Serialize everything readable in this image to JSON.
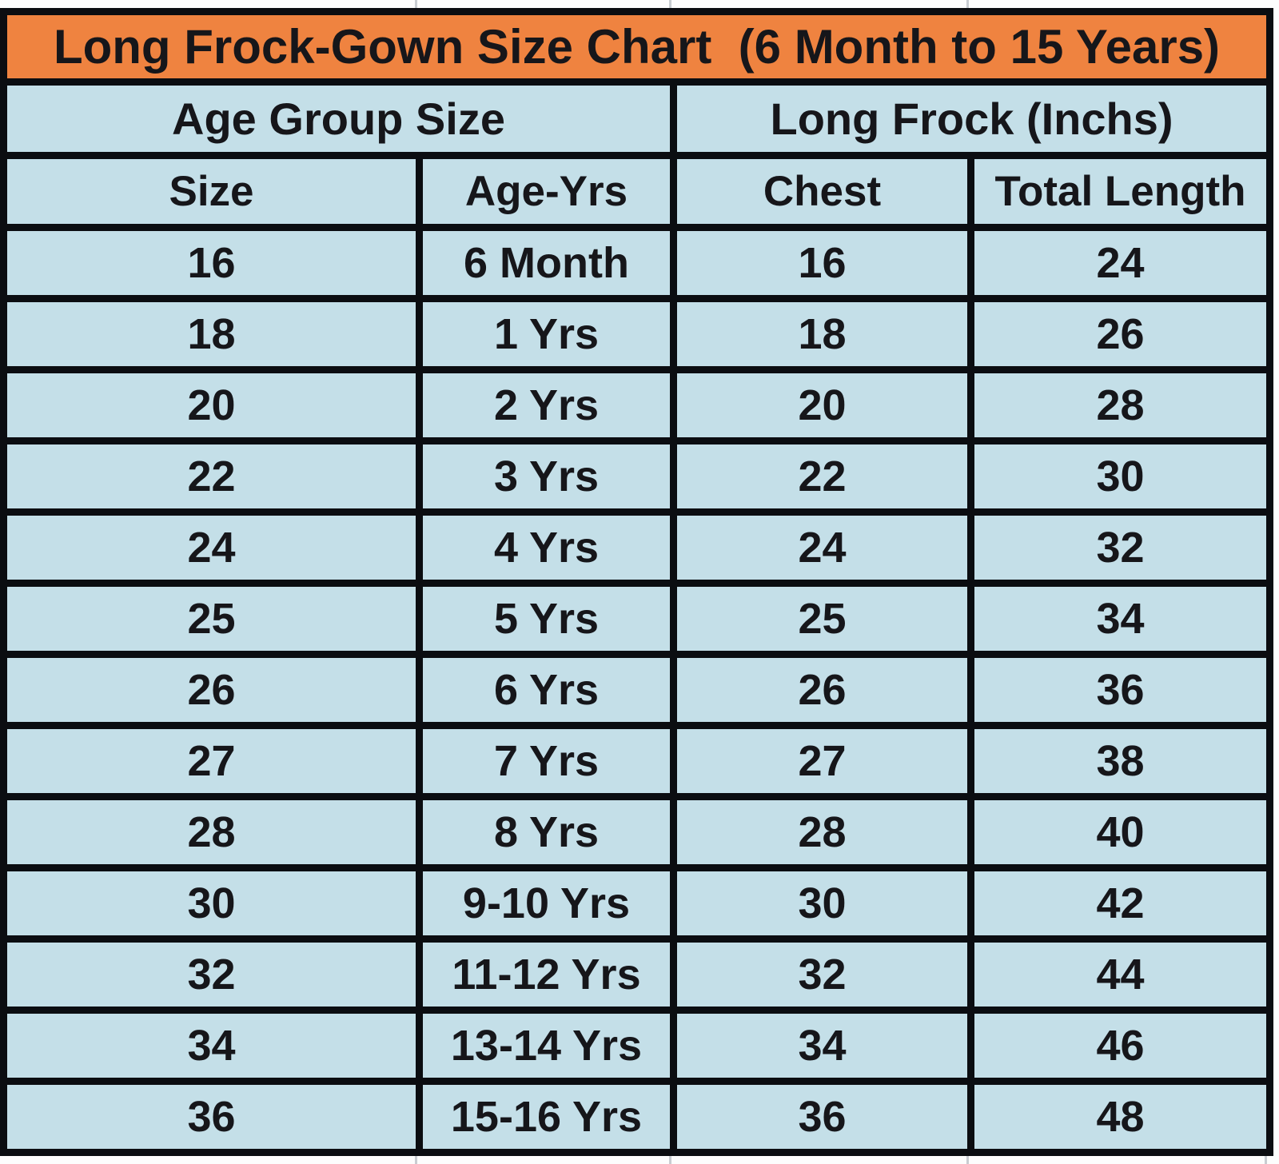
{
  "colors": {
    "header_bg": "#EF8340",
    "cell_bg": "#C4DFE8",
    "border": "#0B0D11",
    "text": "#16161A",
    "background": "#FDFDFD"
  },
  "chart_data": {
    "type": "table",
    "title": "Long Frock-Gown Size Chart  (6 Month to 15 Years)",
    "group_headers": [
      {
        "label": "Age Group Size",
        "span": 2
      },
      {
        "label": "Long Frock (Inchs)",
        "span": 2
      }
    ],
    "columns": [
      "Size",
      "Age-Yrs",
      "Chest",
      "Total Length"
    ],
    "rows": [
      [
        "16",
        "6 Month",
        "16",
        "24"
      ],
      [
        "18",
        "1 Yrs",
        "18",
        "26"
      ],
      [
        "20",
        "2 Yrs",
        "20",
        "28"
      ],
      [
        "22",
        "3 Yrs",
        "22",
        "30"
      ],
      [
        "24",
        "4 Yrs",
        "24",
        "32"
      ],
      [
        "25",
        "5 Yrs",
        "25",
        "34"
      ],
      [
        "26",
        "6 Yrs",
        "26",
        "36"
      ],
      [
        "27",
        "7 Yrs",
        "27",
        "38"
      ],
      [
        "28",
        "8 Yrs",
        "28",
        "40"
      ],
      [
        "30",
        "9-10 Yrs",
        "30",
        "42"
      ],
      [
        "32",
        "11-12 Yrs",
        "32",
        "44"
      ],
      [
        "34",
        "13-14 Yrs",
        "34",
        "46"
      ],
      [
        "36",
        "15-16 Yrs",
        "36",
        "48"
      ]
    ]
  }
}
